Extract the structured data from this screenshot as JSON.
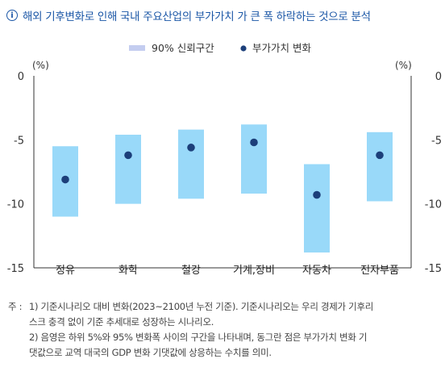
{
  "header": {
    "icon": "info-icon",
    "title": "해외 기후변화로 인해 국내 주요산업의 부가가치 가 큰 폭 하락하는 것으로 분석"
  },
  "chart_data": {
    "type": "range-bar",
    "categories": [
      "정유",
      "화학",
      "철강",
      "기계,장비",
      "자동차",
      "전자부품"
    ],
    "series": [
      {
        "name": "90% 신뢰구간",
        "kind": "range",
        "color": "#99d9f9",
        "low": [
          -11.0,
          -10.0,
          -9.6,
          -9.2,
          -13.8,
          -9.8
        ],
        "high": [
          -5.5,
          -4.6,
          -4.2,
          -3.8,
          -6.9,
          -4.4
        ]
      },
      {
        "name": "부가가치 변화",
        "kind": "point",
        "color": "#1c3f7a",
        "values": [
          -8.1,
          -6.2,
          -5.6,
          -5.2,
          -9.3,
          -6.2
        ]
      }
    ],
    "ylim": [
      -15,
      0
    ],
    "yticks": [
      0,
      -5,
      -10,
      -15
    ],
    "ylabel_left": "(%)",
    "ylabel_right": "(%)",
    "legend_position": "top"
  },
  "notes": {
    "prefix": "주 :",
    "line1": "1) 기준시나리오 대비 변화(2023~2100년 누전 기준). 기준시나리오는 우리 경제가 기후리",
    "line2": "스크 충격 없이 기준 추세대로 성장하는 시나리오.",
    "line3": "2) 음영은 하위 5%와 95% 변화폭 사이의 구간을 나타내며, 동그란 점은 부가가치 변화 기",
    "line4": "댓값으로 교역 대국의 GDP 변화 기댓값에 상응하는 수치를 의미."
  }
}
